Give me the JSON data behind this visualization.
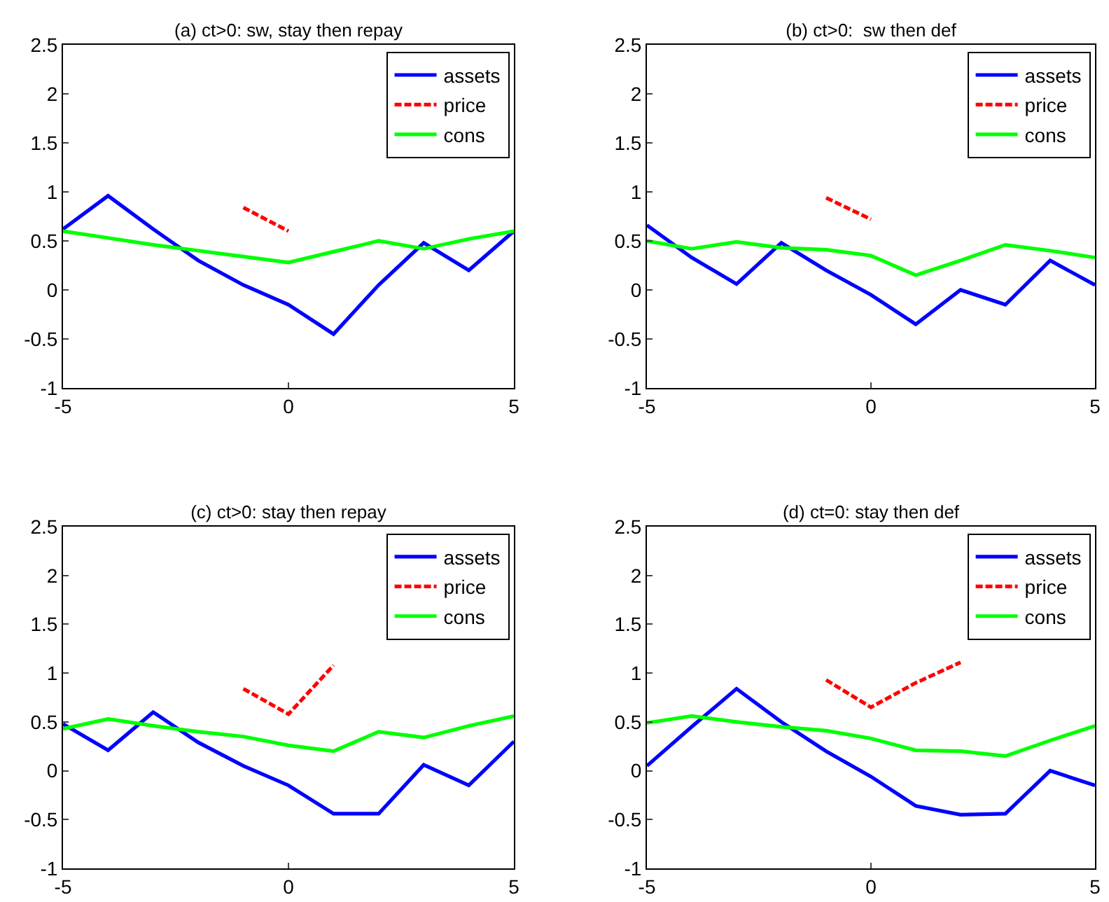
{
  "chart_data": [
    {
      "type": "line",
      "title": "(a) ct>0: sw, stay then repay",
      "x": [
        -5,
        -4,
        -3,
        -2,
        -1,
        0,
        1,
        2,
        3,
        4,
        5
      ],
      "xlim": [
        -5,
        5
      ],
      "xticks": [
        -5,
        0,
        5
      ],
      "ylim": [
        -1,
        2.5
      ],
      "yticks": [
        -1,
        -0.5,
        0,
        0.5,
        1,
        1.5,
        2,
        2.5
      ],
      "grid": false,
      "legend": "top right",
      "series": [
        {
          "name": "assets",
          "color": "#0000ff",
          "line_style": "solid",
          "values": [
            0.62,
            0.96,
            0.62,
            0.3,
            0.05,
            -0.15,
            -0.45,
            0.05,
            0.48,
            0.2,
            0.6
          ]
        },
        {
          "name": "price",
          "color": "#ff0000",
          "line_style": "dashed",
          "x": [
            -1,
            0
          ],
          "values": [
            0.84,
            0.6
          ]
        },
        {
          "name": "cons",
          "color": "#00ff00",
          "line_style": "solid",
          "values": [
            0.6,
            0.53,
            0.46,
            0.4,
            0.34,
            0.28,
            0.39,
            0.5,
            0.42,
            0.52,
            0.6
          ]
        }
      ]
    },
    {
      "type": "line",
      "title": "(b) ct>0:  sw then def",
      "x": [
        -5,
        -4,
        -3,
        -2,
        -1,
        0,
        1,
        2,
        3,
        4,
        5
      ],
      "xlim": [
        -5,
        5
      ],
      "xticks": [
        -5,
        0,
        5
      ],
      "ylim": [
        -1,
        2.5
      ],
      "yticks": [
        -1,
        -0.5,
        0,
        0.5,
        1,
        1.5,
        2,
        2.5
      ],
      "grid": false,
      "legend": "top right",
      "series": [
        {
          "name": "assets",
          "color": "#0000ff",
          "line_style": "solid",
          "values": [
            0.66,
            0.33,
            0.06,
            0.48,
            0.2,
            -0.05,
            -0.35,
            0.0,
            -0.15,
            0.3,
            0.05
          ]
        },
        {
          "name": "price",
          "color": "#ff0000",
          "line_style": "dashed",
          "x": [
            -1,
            0
          ],
          "values": [
            0.94,
            0.72
          ]
        },
        {
          "name": "cons",
          "color": "#00ff00",
          "line_style": "solid",
          "values": [
            0.5,
            0.42,
            0.49,
            0.43,
            0.41,
            0.35,
            0.15,
            0.3,
            0.46,
            0.4,
            0.33
          ]
        }
      ]
    },
    {
      "type": "line",
      "title": "(c) ct>0: stay then repay",
      "x": [
        -5,
        -4,
        -3,
        -2,
        -1,
        0,
        1,
        2,
        3,
        4,
        5
      ],
      "xlim": [
        -5,
        5
      ],
      "xticks": [
        -5,
        0,
        5
      ],
      "ylim": [
        -1,
        2.5
      ],
      "yticks": [
        -1,
        -0.5,
        0,
        0.5,
        1,
        1.5,
        2,
        2.5
      ],
      "grid": false,
      "legend": "top right",
      "series": [
        {
          "name": "assets",
          "color": "#0000ff",
          "line_style": "solid",
          "values": [
            0.48,
            0.21,
            0.6,
            0.29,
            0.05,
            -0.15,
            -0.44,
            -0.44,
            0.06,
            -0.15,
            0.3
          ]
        },
        {
          "name": "price",
          "color": "#ff0000",
          "line_style": "dashed",
          "x": [
            -1,
            0,
            1
          ],
          "values": [
            0.84,
            0.58,
            1.08
          ]
        },
        {
          "name": "cons",
          "color": "#00ff00",
          "line_style": "solid",
          "values": [
            0.43,
            0.53,
            0.46,
            0.4,
            0.35,
            0.26,
            0.2,
            0.4,
            0.34,
            0.46,
            0.56
          ]
        }
      ]
    },
    {
      "type": "line",
      "title": "(d) ct=0: stay then def",
      "x": [
        -5,
        -4,
        -3,
        -2,
        -1,
        0,
        1,
        2,
        3,
        4,
        5
      ],
      "xlim": [
        -5,
        5
      ],
      "xticks": [
        -5,
        0,
        5
      ],
      "ylim": [
        -1,
        2.5
      ],
      "yticks": [
        -1,
        -0.5,
        0,
        0.5,
        1,
        1.5,
        2,
        2.5
      ],
      "grid": false,
      "legend": "top right",
      "series": [
        {
          "name": "assets",
          "color": "#0000ff",
          "line_style": "solid",
          "values": [
            0.05,
            0.45,
            0.84,
            0.5,
            0.2,
            -0.06,
            -0.36,
            -0.45,
            -0.44,
            0.0,
            -0.15
          ]
        },
        {
          "name": "price",
          "color": "#ff0000",
          "line_style": "dashed",
          "x": [
            -1,
            0,
            1,
            2
          ],
          "values": [
            0.93,
            0.65,
            0.9,
            1.11
          ]
        },
        {
          "name": "cons",
          "color": "#00ff00",
          "line_style": "solid",
          "values": [
            0.49,
            0.56,
            0.5,
            0.45,
            0.41,
            0.33,
            0.21,
            0.2,
            0.15,
            0.31,
            0.46
          ]
        }
      ]
    }
  ]
}
